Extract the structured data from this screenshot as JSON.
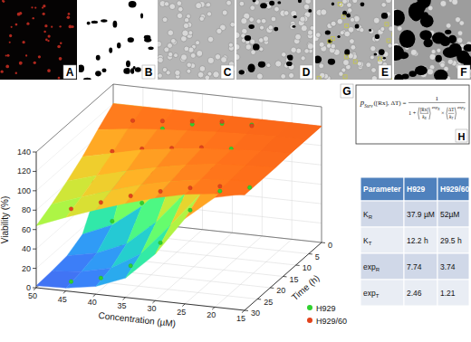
{
  "panel_labels": [
    "A",
    "B",
    "C",
    "D",
    "E",
    "F",
    "G",
    "H"
  ],
  "chart_data": {
    "type": "scatter3d",
    "x_label": "Concentration (µM)",
    "y_label": "Viability (%)",
    "z_label": "Time (h)",
    "xlim": [
      50,
      15
    ],
    "xticks": [
      50,
      45,
      40,
      35,
      30,
      25,
      20,
      15
    ],
    "ylim": [
      0,
      140
    ],
    "yticks": [
      0,
      20,
      40,
      60,
      80,
      100,
      120,
      140
    ],
    "zlim": [
      30,
      0
    ],
    "zticks": [
      0,
      5,
      10,
      15,
      20,
      25,
      30
    ],
    "grid": true,
    "legend": "lower right",
    "series": [
      {
        "name": "H929",
        "color": "#2fd12f",
        "marker": "circle",
        "x": [
          45,
          40,
          35,
          30,
          25,
          20,
          15,
          45,
          40,
          35,
          30,
          25,
          20,
          45,
          40,
          35,
          30,
          25,
          45,
          40,
          35,
          30,
          25
        ],
        "z": [
          28,
          28,
          28,
          28,
          28,
          28,
          28,
          20,
          20,
          20,
          20,
          20,
          20,
          12,
          12,
          12,
          12,
          12,
          4,
          4,
          4,
          4,
          4
        ],
        "values": [
          5,
          12,
          28,
          55,
          92,
          115,
          122,
          12,
          25,
          48,
          80,
          108,
          119,
          30,
          52,
          82,
          106,
          118,
          95,
          110,
          118,
          122,
          124
        ],
        "surface": {
          "x": [
            15,
            20,
            25,
            30,
            35,
            40,
            45,
            50
          ],
          "z": [
            0,
            6,
            12,
            18,
            24,
            30
          ],
          "values": [
            [
              120,
              120,
              120,
              120,
              120,
              120
            ],
            [
              120,
              120,
              119,
              118,
              116,
              113
            ],
            [
              120,
              119,
              116,
              109,
              99,
              88
            ],
            [
              120,
              117,
              104,
              84,
              64,
              48
            ],
            [
              120,
              110,
              79,
              50,
              31,
              20
            ],
            [
              120,
              95,
              49,
              24,
              13,
              8
            ],
            [
              120,
              72,
              26,
              11,
              6,
              3
            ],
            [
              120,
              48,
              13,
              5,
              3,
              2
            ]
          ]
        }
      },
      {
        "name": "H929/60",
        "color": "#e2431c",
        "marker": "circle",
        "x": [
          45,
          40,
          35,
          30,
          25,
          20,
          45,
          40,
          35,
          30,
          25,
          45,
          40,
          35,
          30,
          45,
          40,
          35,
          30,
          25
        ],
        "z": [
          28,
          28,
          28,
          28,
          28,
          28,
          20,
          20,
          20,
          20,
          20,
          12,
          12,
          12,
          12,
          4,
          4,
          4,
          4,
          4
        ],
        "values": [
          80,
          90,
          100,
          108,
          115,
          120,
          90,
          98,
          106,
          112,
          117,
          102,
          108,
          112,
          116,
          115,
          118,
          121,
          124,
          123
        ],
        "surface": {
          "x": [
            15,
            20,
            25,
            30,
            35,
            40,
            45,
            50
          ],
          "z": [
            0,
            6,
            12,
            18,
            24,
            30
          ],
          "values": [
            [
              120,
              120,
              120,
              119,
              119,
              119
            ],
            [
              120,
              120,
              119,
              118,
              117,
              117
            ],
            [
              120,
              119,
              117,
              116,
              114,
              113
            ],
            [
              120,
              118,
              115,
              112,
              109,
              106
            ],
            [
              120,
              116,
              111,
              106,
              102,
              97
            ],
            [
              120,
              114,
              107,
              99,
              93,
              87
            ],
            [
              120,
              111,
              100,
              91,
              83,
              76
            ],
            [
              120,
              107,
              93,
              82,
              72,
              64
            ]
          ]
        }
      }
    ]
  },
  "equation": {
    "lhs": "p",
    "lhs_sub": "Surv",
    "args": "([Rx], ΔT) =",
    "numerator": "1",
    "lead": "1 +",
    "r_num": "[Rx]",
    "r_den": "k",
    "r_den_sub": "R",
    "r_exp": "exp",
    "r_exp_sub": "R",
    "times": "×",
    "t_num": "ΔT",
    "t_den": "k",
    "t_den_sub": "T",
    "t_exp": "exp",
    "t_exp_sub": "T"
  },
  "table": {
    "header": [
      "Parameter",
      "H929",
      "H929/60"
    ],
    "rows": [
      {
        "param": "K",
        "sub": "R",
        "cells": [
          "37.9 µM",
          "52µM"
        ]
      },
      {
        "param": "K",
        "sub": "T",
        "cells": [
          "12.2 h",
          "29.5 h"
        ]
      },
      {
        "param": "exp",
        "sub": "R",
        "cells": [
          "7.74",
          "3.74"
        ]
      },
      {
        "param": "exp",
        "sub": "T",
        "cells": [
          "2.46",
          "1.21"
        ]
      }
    ]
  }
}
